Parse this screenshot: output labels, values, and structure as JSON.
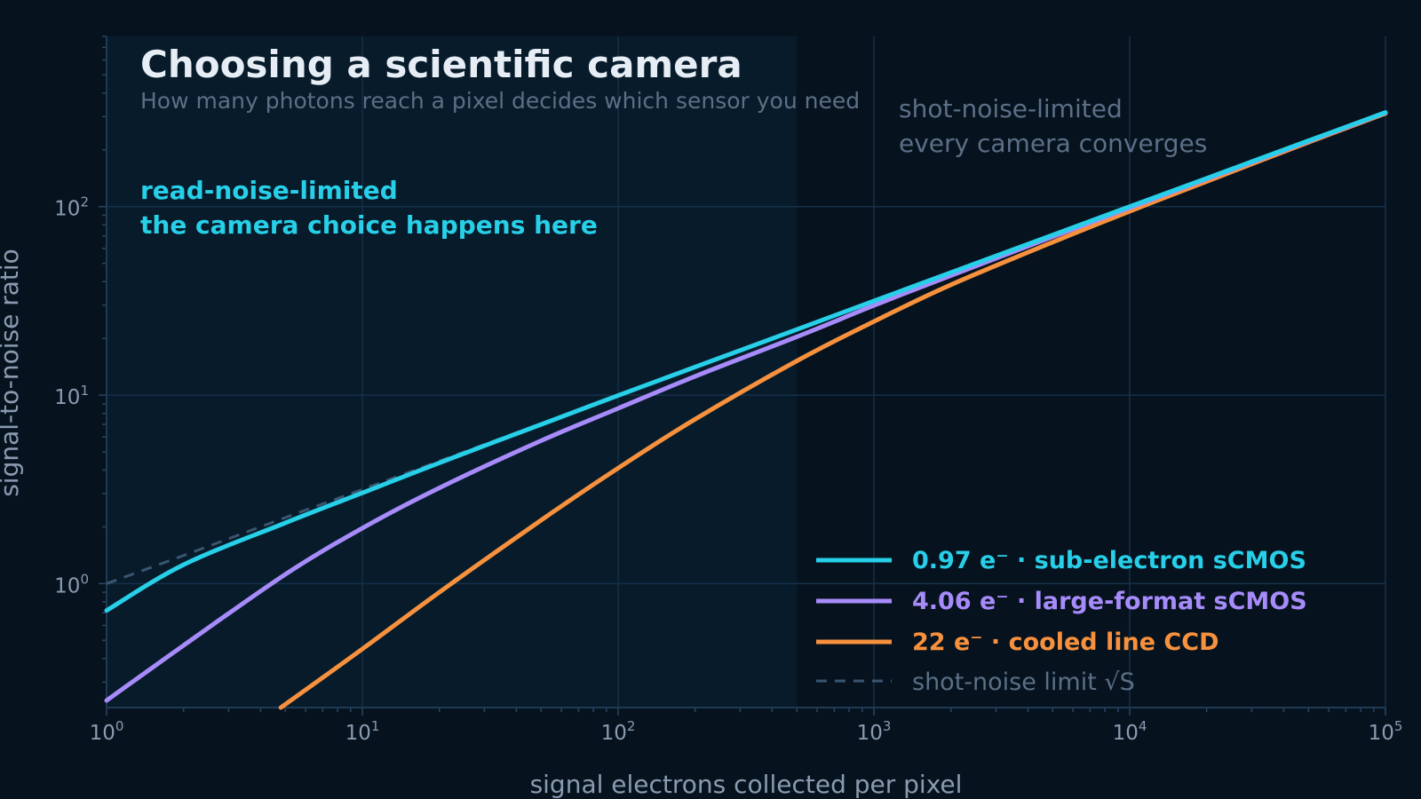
{
  "chart_data": {
    "type": "line",
    "title": "Choosing a scientific camera",
    "subtitle": "How many photons reach a pixel decides which sensor you need",
    "xlabel": "signal electrons collected per pixel",
    "ylabel": "signal-to-noise ratio",
    "x_scale": "log",
    "y_scale": "log",
    "xlim": [
      1,
      100000
    ],
    "ylim": [
      0.22,
      800
    ],
    "x_ticks": [
      {
        "base": "10",
        "exp": "0"
      },
      {
        "base": "10",
        "exp": "1"
      },
      {
        "base": "10",
        "exp": "2"
      },
      {
        "base": "10",
        "exp": "3"
      },
      {
        "base": "10",
        "exp": "4"
      },
      {
        "base": "10",
        "exp": "5"
      }
    ],
    "y_ticks": [
      {
        "base": "10",
        "exp": "0"
      },
      {
        "base": "10",
        "exp": "1"
      },
      {
        "base": "10",
        "exp": "2"
      }
    ],
    "grid": true,
    "legend_position": "bottom-right",
    "shaded_region": {
      "x_from": 1,
      "x_to": 500,
      "color": "#071b2a"
    },
    "annotations": [
      {
        "lines": [
          "read-noise-limited",
          "the camera choice happens here"
        ],
        "color": "#27cfe8"
      },
      {
        "lines": [
          "shot-noise-limited",
          "every camera converges"
        ],
        "color": "#5c6f86"
      }
    ],
    "series": [
      {
        "name": "0.97 e⁻ · sub-electron sCMOS",
        "read_noise": 0.97,
        "color": "#27cfe8",
        "x": [
          1,
          2,
          5,
          10,
          20,
          50,
          100,
          200,
          500,
          1000,
          2000,
          5000,
          10000,
          20000,
          50000,
          100000
        ],
        "y": [
          0.72,
          1.26,
          2.1,
          3.03,
          4.37,
          6.99,
          9.95,
          14.1,
          22.3,
          31.6,
          44.7,
          70.7,
          100,
          141.4,
          223.6,
          316.2
        ]
      },
      {
        "name": "4.06 e⁻ · large-format sCMOS",
        "read_noise": 4.06,
        "color": "#a78bfa",
        "x": [
          1,
          2,
          5,
          10,
          20,
          50,
          100,
          200,
          500,
          1000,
          2000,
          5000,
          10000,
          20000,
          50000,
          100000
        ],
        "y": [
          0.24,
          0.47,
          1.12,
          1.97,
          3.22,
          5.73,
          8.5,
          12.58,
          20.4,
          29.9,
          43.1,
          69.2,
          98.5,
          140,
          222.2,
          314.8
        ]
      },
      {
        "name": "22 e⁻ · cooled line CCD",
        "read_noise": 22,
        "color": "#f7913d",
        "x": [
          4.8,
          10,
          20,
          50,
          100,
          200,
          500,
          1000,
          2000,
          5000,
          10000,
          20000,
          50000,
          100000
        ],
        "y": [
          0.22,
          0.45,
          0.9,
          2.17,
          4.1,
          7.45,
          15.2,
          24.6,
          38.5,
          64.8,
          94.5,
          136,
          219.5,
          312
        ]
      },
      {
        "name": "shot-noise limit  √S",
        "color": "#3a5570",
        "dashed": true,
        "x": [
          1,
          2,
          5,
          10,
          20,
          50
        ],
        "y": [
          1,
          1.41,
          2.24,
          3.16,
          4.47,
          7.07
        ]
      }
    ]
  }
}
